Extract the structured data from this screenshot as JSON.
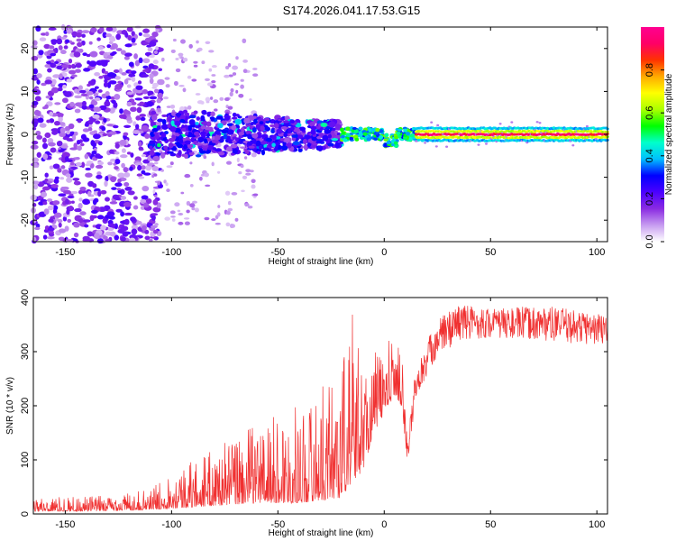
{
  "title": "S174.2026.041.17.53.G15",
  "chart_data": [
    {
      "type": "heatmap",
      "name": "spectrogram",
      "xlabel": "Height of straight line (km)",
      "ylabel": "Frequency (Hz)",
      "xlim": [
        -165,
        105
      ],
      "ylim": [
        -25,
        25
      ],
      "xticks": [
        -150,
        -100,
        -50,
        0,
        50,
        100
      ],
      "yticks": [
        -20,
        -10,
        0,
        10,
        20
      ],
      "colorbar": {
        "label": "Normalized spectral amplitude",
        "range": [
          0,
          1
        ],
        "ticks": [
          0.0,
          0.2,
          0.4,
          0.6,
          0.8
        ],
        "colors": [
          "#ffffff",
          "#c79cf0",
          "#8a2be2",
          "#4b00ff",
          "#0000ff",
          "#00bfff",
          "#00ffcc",
          "#00ff00",
          "#aaff00",
          "#ffff00",
          "#ffaa00",
          "#ff3300",
          "#ff0066",
          "#ff0090"
        ]
      },
      "regions": [
        {
          "x_range": [
            -165,
            -110
          ],
          "freq_spread": 25,
          "amplitude": 0.15,
          "description_level": "diffuse noise"
        },
        {
          "x_range": [
            -110,
            -20
          ],
          "freq_spread": 4,
          "amplitude": 0.25
        },
        {
          "x_range": [
            -20,
            15
          ],
          "freq_center": 0,
          "amplitude": 0.55
        },
        {
          "x_range": [
            15,
            105
          ],
          "freq_center": 0,
          "amplitude": 0.9
        }
      ]
    },
    {
      "type": "line",
      "name": "snr",
      "xlabel": "Height of straight line (km)",
      "ylabel": "SNR (10 * v/v)",
      "xlim": [
        -165,
        105
      ],
      "ylim": [
        0,
        400
      ],
      "xticks": [
        -150,
        -100,
        -50,
        0,
        50,
        100
      ],
      "yticks": [
        0,
        100,
        200,
        300,
        400
      ],
      "color": "#f03030",
      "envelope": [
        {
          "x": -165,
          "low": 5,
          "high": 30
        },
        {
          "x": -130,
          "low": 5,
          "high": 35
        },
        {
          "x": -110,
          "low": 8,
          "high": 45
        },
        {
          "x": -100,
          "low": 10,
          "high": 80
        },
        {
          "x": -80,
          "low": 15,
          "high": 120
        },
        {
          "x": -60,
          "low": 20,
          "high": 170
        },
        {
          "x": -40,
          "low": 20,
          "high": 200
        },
        {
          "x": -30,
          "low": 25,
          "high": 230
        },
        {
          "x": -20,
          "low": 30,
          "high": 300
        },
        {
          "x": -15,
          "low": 60,
          "high": 380
        },
        {
          "x": -10,
          "low": 80,
          "high": 280
        },
        {
          "x": -5,
          "low": 150,
          "high": 300
        },
        {
          "x": 5,
          "low": 220,
          "high": 330
        },
        {
          "x": 8,
          "low": 200,
          "high": 320
        },
        {
          "x": 11,
          "low": 95,
          "high": 140
        },
        {
          "x": 15,
          "low": 220,
          "high": 280
        },
        {
          "x": 25,
          "low": 290,
          "high": 360
        },
        {
          "x": 35,
          "low": 320,
          "high": 390
        },
        {
          "x": 50,
          "low": 325,
          "high": 380
        },
        {
          "x": 75,
          "low": 320,
          "high": 385
        },
        {
          "x": 105,
          "low": 310,
          "high": 370
        }
      ]
    }
  ]
}
